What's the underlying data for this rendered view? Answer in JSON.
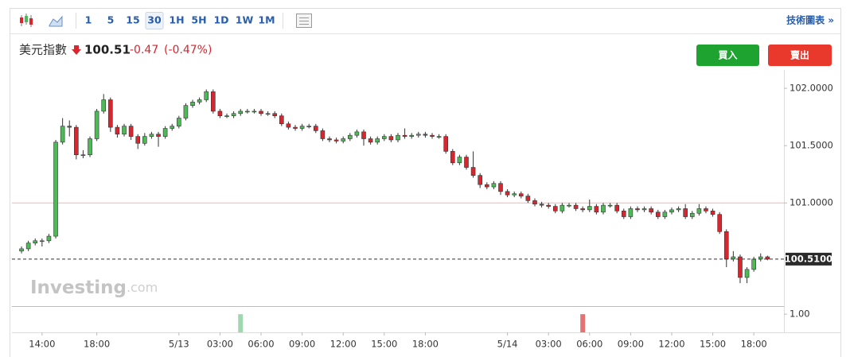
{
  "toolbar": {
    "intervals": [
      "1",
      "5",
      "15",
      "30",
      "1H",
      "5H",
      "1D",
      "1W",
      "1M"
    ],
    "selected_index": 3,
    "link": "技術圖表 »"
  },
  "quote": {
    "name": "美元指數",
    "price": 100.51,
    "change": -0.47,
    "change_percent": "(-0.47%)"
  },
  "buttons": {
    "buy": "買入",
    "sell": "賣出"
  },
  "watermark": {
    "brand": "Investing",
    "suffix": ".com"
  },
  "chart_data": {
    "type": "candlestick",
    "open": [
      100.58,
      100.6,
      100.65,
      100.67,
      100.67,
      100.71,
      101.53,
      101.67,
      101.66,
      101.42,
      101.42,
      101.56,
      101.8,
      101.9,
      101.66,
      101.6,
      101.67,
      101.58,
      101.52,
      101.58,
      101.6,
      101.58,
      101.65,
      101.67,
      101.74,
      101.85,
      101.88,
      101.9,
      101.97,
      101.8,
      101.76,
      101.76,
      101.78,
      101.8,
      101.8,
      101.8,
      101.78,
      101.78,
      101.76,
      101.69,
      101.66,
      101.65,
      101.67,
      101.67,
      101.63,
      101.56,
      101.55,
      101.54,
      101.56,
      101.59,
      101.62,
      101.56,
      101.53,
      101.56,
      101.58,
      101.55,
      101.59,
      101.58,
      101.59,
      101.6,
      101.59,
      101.58,
      101.58,
      101.45,
      101.35,
      101.4,
      101.31,
      101.24,
      101.16,
      101.14,
      101.17,
      101.1,
      101.07,
      101.08,
      101.06,
      101.02,
      100.99,
      100.98,
      100.97,
      100.93,
      100.98,
      100.98,
      100.95,
      100.94,
      100.97,
      100.92,
      100.98,
      100.98,
      100.93,
      100.88,
      100.95,
      100.94,
      100.95,
      100.92,
      100.88,
      100.92,
      100.94,
      100.95,
      100.88,
      100.91,
      100.95,
      100.93,
      100.9,
      100.75,
      100.51,
      100.53,
      100.35,
      100.42,
      100.51,
      100.53
    ],
    "high": [
      100.62,
      100.67,
      100.69,
      100.69,
      100.73,
      101.55,
      101.74,
      101.72,
      101.68,
      101.46,
      101.58,
      101.82,
      101.95,
      101.92,
      101.68,
      101.69,
      101.69,
      101.6,
      101.61,
      101.62,
      101.62,
      101.67,
      101.69,
      101.76,
      101.87,
      101.9,
      101.92,
      101.99,
      101.99,
      101.82,
      101.78,
      101.8,
      101.82,
      101.82,
      101.82,
      101.82,
      101.8,
      101.8,
      101.78,
      101.71,
      101.68,
      101.69,
      101.69,
      101.69,
      101.65,
      101.58,
      101.57,
      101.58,
      101.61,
      101.64,
      101.64,
      101.58,
      101.58,
      101.6,
      101.6,
      101.61,
      101.65,
      101.61,
      101.62,
      101.62,
      101.61,
      101.6,
      101.6,
      101.47,
      101.42,
      101.42,
      101.45,
      101.26,
      101.18,
      101.19,
      101.19,
      101.12,
      101.1,
      101.1,
      101.08,
      101.04,
      101.01,
      101.0,
      100.99,
      101.0,
      101.0,
      101.0,
      100.97,
      101.03,
      100.99,
      101.0,
      101.0,
      101.0,
      100.95,
      100.97,
      100.97,
      100.97,
      100.97,
      100.94,
      100.94,
      100.96,
      100.97,
      100.99,
      100.93,
      100.99,
      100.97,
      100.95,
      100.92,
      100.77,
      100.58,
      100.55,
      100.44,
      100.53,
      100.56,
      100.54
    ],
    "low": [
      100.56,
      100.58,
      100.63,
      100.62,
      100.65,
      100.69,
      101.51,
      101.58,
      101.38,
      101.39,
      101.4,
      101.54,
      101.78,
      101.62,
      101.57,
      101.58,
      101.55,
      101.47,
      101.5,
      101.56,
      101.49,
      101.56,
      101.63,
      101.65,
      101.72,
      101.83,
      101.86,
      101.88,
      101.78,
      101.74,
      101.74,
      101.74,
      101.76,
      101.78,
      101.78,
      101.76,
      101.76,
      101.74,
      101.67,
      101.64,
      101.63,
      101.63,
      101.65,
      101.61,
      101.54,
      101.53,
      101.52,
      101.52,
      101.54,
      101.57,
      101.5,
      101.51,
      101.51,
      101.54,
      101.53,
      101.53,
      101.56,
      101.56,
      101.57,
      101.57,
      101.56,
      101.56,
      101.43,
      101.33,
      101.33,
      101.29,
      101.22,
      101.13,
      101.12,
      101.12,
      101.07,
      101.05,
      101.05,
      101.04,
      101.0,
      100.97,
      100.96,
      100.95,
      100.91,
      100.91,
      100.96,
      100.93,
      100.92,
      100.92,
      100.9,
      100.9,
      100.96,
      100.91,
      100.86,
      100.86,
      100.92,
      100.92,
      100.9,
      100.86,
      100.86,
      100.9,
      100.92,
      100.86,
      100.86,
      100.89,
      100.91,
      100.88,
      100.73,
      100.44,
      100.49,
      100.3,
      100.3,
      100.4,
      100.49,
      100.5
    ],
    "close": [
      100.6,
      100.65,
      100.67,
      100.67,
      100.71,
      101.53,
      101.67,
      101.66,
      101.42,
      101.42,
      101.56,
      101.8,
      101.9,
      101.66,
      101.6,
      101.67,
      101.58,
      101.52,
      101.58,
      101.6,
      101.58,
      101.65,
      101.67,
      101.74,
      101.85,
      101.88,
      101.9,
      101.97,
      101.8,
      101.76,
      101.76,
      101.78,
      101.8,
      101.8,
      101.8,
      101.78,
      101.78,
      101.76,
      101.69,
      101.66,
      101.65,
      101.67,
      101.67,
      101.63,
      101.56,
      101.55,
      101.54,
      101.56,
      101.59,
      101.62,
      101.56,
      101.53,
      101.56,
      101.58,
      101.55,
      101.59,
      101.58,
      101.59,
      101.6,
      101.59,
      101.58,
      101.58,
      101.45,
      101.35,
      101.4,
      101.31,
      101.24,
      101.16,
      101.14,
      101.17,
      101.1,
      101.07,
      101.08,
      101.06,
      101.02,
      100.99,
      100.98,
      100.97,
      100.93,
      100.98,
      100.98,
      100.95,
      100.94,
      100.97,
      100.92,
      100.98,
      100.98,
      100.93,
      100.88,
      100.95,
      100.94,
      100.95,
      100.92,
      100.88,
      100.92,
      100.94,
      100.95,
      100.88,
      100.91,
      100.95,
      100.93,
      100.9,
      100.75,
      100.51,
      100.53,
      100.35,
      100.42,
      100.51,
      100.53,
      100.51
    ],
    "up_color": "#4cbb55",
    "down_color": "#d9262e",
    "xlim": [
      -1.4,
      111.4
    ],
    "ylim": [
      100.1,
      102.16
    ],
    "yticks": [
      {
        "value": 102,
        "label": "102.0000"
      },
      {
        "value": 101.5,
        "label": "101.5000"
      },
      {
        "value": 101,
        "label": "101.0000"
      }
    ],
    "xticks": [
      {
        "value": 3,
        "label": "14:00"
      },
      {
        "value": 11,
        "label": "18:00"
      },
      {
        "value": 23,
        "label": "5/13"
      },
      {
        "value": 29,
        "label": "03:00"
      },
      {
        "value": 35,
        "label": "06:00"
      },
      {
        "value": 41,
        "label": "09:00"
      },
      {
        "value": 47,
        "label": "12:00"
      },
      {
        "value": 53,
        "label": "15:00"
      },
      {
        "value": 59,
        "label": "18:00"
      },
      {
        "value": 71,
        "label": "5/14"
      },
      {
        "value": 77,
        "label": "03:00"
      },
      {
        "value": 83,
        "label": "06:00"
      },
      {
        "value": 89,
        "label": "09:00"
      },
      {
        "value": 95,
        "label": "12:00"
      },
      {
        "value": 101,
        "label": "15:00"
      },
      {
        "value": 107,
        "label": "18:00"
      }
    ],
    "reference_line": {
      "value": 101.0,
      "color": "#f3b3b3"
    },
    "last_price": {
      "value": 100.51,
      "label": "100.5100"
    },
    "volume": {
      "ylim": [
        0,
        1.4
      ],
      "yticks": [
        {
          "value": 1,
          "label": "1.00"
        }
      ],
      "bars": [
        {
          "x": 32,
          "value": 1,
          "color": "#9fd8ae"
        },
        {
          "x": 82,
          "value": 1,
          "color": "#e57373"
        }
      ]
    }
  }
}
